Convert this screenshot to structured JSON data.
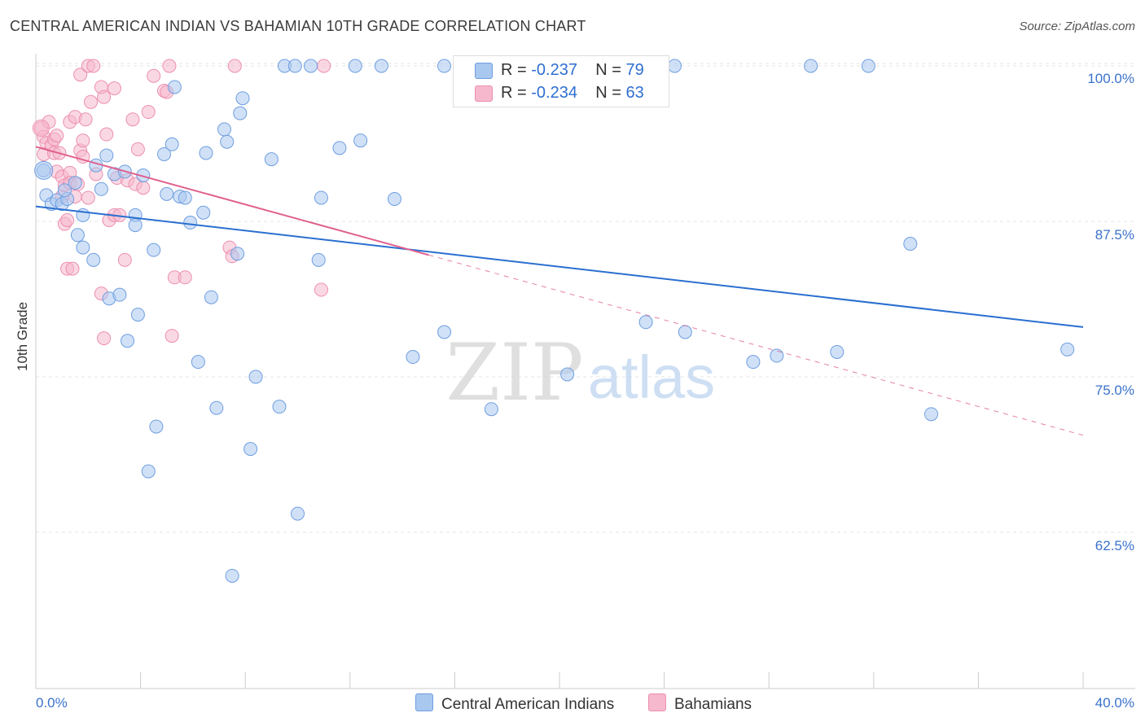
{
  "title": "CENTRAL AMERICAN INDIAN VS BAHAMIAN 10TH GRADE CORRELATION CHART",
  "source": "Source: ZipAtlas.com",
  "watermark": {
    "zip": "ZIP",
    "atlas": "atlas"
  },
  "legend": {
    "rows": [
      {
        "r_label": "R = ",
        "r_value": "-0.237",
        "n_label": "N = ",
        "n_value": "79"
      },
      {
        "r_label": "R = ",
        "r_value": "-0.234",
        "n_label": "N = ",
        "n_value": "63"
      }
    ]
  },
  "colors": {
    "blue_fill": "#a9c8f0",
    "blue_stroke": "#6f9ee0",
    "blue_line": "#2a6fd0",
    "pink_fill": "#f6b8cc",
    "pink_stroke": "#ec8fb0",
    "pink_line": "#e0608e",
    "tick_label": "#3a72cc",
    "grid": "#e4e4e4"
  },
  "chart_data": {
    "type": "scatter",
    "title": "CENTRAL AMERICAN INDIAN VS BAHAMIAN 10TH GRADE CORRELATION CHART",
    "xlabel": "",
    "ylabel": "10th Grade",
    "xlim": [
      0,
      40
    ],
    "ylim": [
      50,
      101
    ],
    "x_tick_labels": [
      "0.0%",
      "40.0%"
    ],
    "y_ticks": [
      62.5,
      75.0,
      87.5,
      100.0
    ],
    "y_tick_labels": [
      "62.5%",
      "75.0%",
      "87.5%",
      "100.0%"
    ],
    "grid": true,
    "legend_position": "bottom",
    "series": [
      {
        "name": "Central American Indians",
        "r": -0.237,
        "n": 79,
        "trend": {
          "x": [
            0,
            40
          ],
          "y": [
            88.7,
            79.0
          ],
          "style": "solid"
        },
        "points": [
          [
            0.3,
            91.6
          ],
          [
            0.4,
            89.6
          ],
          [
            0.6,
            88.9
          ],
          [
            0.8,
            89.2
          ],
          [
            1.0,
            88.9
          ],
          [
            1.2,
            89.3
          ],
          [
            1.1,
            90.0
          ],
          [
            1.5,
            90.6
          ],
          [
            1.6,
            86.4
          ],
          [
            1.8,
            85.4
          ],
          [
            1.8,
            88.0
          ],
          [
            2.2,
            84.4
          ],
          [
            2.3,
            92.0
          ],
          [
            2.5,
            90.1
          ],
          [
            2.7,
            92.8
          ],
          [
            2.8,
            81.3
          ],
          [
            3.0,
            91.3
          ],
          [
            3.2,
            81.6
          ],
          [
            3.4,
            91.5
          ],
          [
            3.5,
            77.9
          ],
          [
            3.8,
            88.0
          ],
          [
            3.8,
            87.2
          ],
          [
            3.9,
            80.0
          ],
          [
            4.1,
            91.2
          ],
          [
            4.3,
            67.4
          ],
          [
            4.5,
            85.2
          ],
          [
            4.6,
            71.0
          ],
          [
            4.9,
            92.9
          ],
          [
            5.0,
            89.7
          ],
          [
            5.2,
            93.7
          ],
          [
            5.3,
            98.3
          ],
          [
            5.5,
            89.5
          ],
          [
            5.7,
            89.4
          ],
          [
            5.9,
            87.4
          ],
          [
            6.2,
            76.2
          ],
          [
            6.4,
            88.2
          ],
          [
            6.5,
            93.0
          ],
          [
            6.7,
            81.4
          ],
          [
            6.9,
            72.5
          ],
          [
            7.2,
            94.9
          ],
          [
            7.3,
            93.9
          ],
          [
            7.5,
            59.0
          ],
          [
            7.7,
            84.9
          ],
          [
            7.8,
            96.2
          ],
          [
            7.9,
            97.4
          ],
          [
            8.2,
            69.2
          ],
          [
            8.4,
            75.0
          ],
          [
            9.0,
            92.5
          ],
          [
            9.3,
            72.6
          ],
          [
            9.5,
            100.0
          ],
          [
            9.9,
            100.0
          ],
          [
            10.0,
            64.0
          ],
          [
            10.5,
            100.0
          ],
          [
            10.8,
            84.4
          ],
          [
            10.9,
            89.4
          ],
          [
            11.6,
            93.4
          ],
          [
            12.2,
            100.0
          ],
          [
            12.4,
            94.0
          ],
          [
            13.2,
            100.0
          ],
          [
            13.7,
            89.3
          ],
          [
            14.4,
            76.6
          ],
          [
            15.6,
            78.6
          ],
          [
            15.6,
            100.0
          ],
          [
            16.6,
            100.0
          ],
          [
            17.4,
            72.4
          ],
          [
            17.5,
            100.0
          ],
          [
            19.5,
            100.0
          ],
          [
            20.3,
            75.2
          ],
          [
            23.3,
            79.4
          ],
          [
            24.4,
            100.0
          ],
          [
            24.8,
            78.6
          ],
          [
            27.4,
            76.2
          ],
          [
            28.3,
            76.7
          ],
          [
            29.6,
            100.0
          ],
          [
            30.6,
            77.0
          ],
          [
            31.8,
            100.0
          ],
          [
            33.4,
            85.7
          ],
          [
            34.2,
            72.0
          ],
          [
            39.4,
            77.2
          ]
        ]
      },
      {
        "name": "Bahamians",
        "r": -0.234,
        "n": 63,
        "trend": {
          "x": [
            0,
            15
          ],
          "y": [
            93.5,
            84.8
          ],
          "dashed_to": [
            40,
            70.3
          ],
          "style": "solid-then-dashed"
        },
        "points": [
          [
            0.2,
            95.0
          ],
          [
            0.3,
            94.3
          ],
          [
            0.4,
            93.8
          ],
          [
            0.3,
            92.9
          ],
          [
            0.5,
            95.5
          ],
          [
            0.6,
            93.6
          ],
          [
            0.7,
            94.1
          ],
          [
            0.7,
            93.0
          ],
          [
            0.8,
            94.4
          ],
          [
            0.9,
            93.0
          ],
          [
            0.8,
            91.5
          ],
          [
            1.0,
            91.1
          ],
          [
            1.0,
            89.5
          ],
          [
            1.1,
            90.4
          ],
          [
            1.1,
            87.3
          ],
          [
            1.2,
            87.6
          ],
          [
            1.2,
            83.7
          ],
          [
            1.3,
            95.5
          ],
          [
            1.3,
            91.4
          ],
          [
            1.3,
            90.6
          ],
          [
            1.4,
            83.7
          ],
          [
            1.5,
            95.9
          ],
          [
            1.5,
            89.5
          ],
          [
            1.6,
            90.5
          ],
          [
            1.7,
            93.2
          ],
          [
            1.7,
            99.3
          ],
          [
            1.8,
            94.0
          ],
          [
            1.9,
            95.7
          ],
          [
            1.8,
            92.7
          ],
          [
            2.0,
            100.0
          ],
          [
            2.0,
            89.4
          ],
          [
            2.1,
            97.1
          ],
          [
            2.2,
            100.0
          ],
          [
            2.3,
            91.3
          ],
          [
            2.5,
            81.7
          ],
          [
            2.5,
            98.3
          ],
          [
            2.6,
            97.5
          ],
          [
            2.6,
            78.1
          ],
          [
            2.7,
            94.5
          ],
          [
            2.8,
            87.6
          ],
          [
            3.0,
            98.2
          ],
          [
            3.0,
            88.0
          ],
          [
            3.1,
            91.0
          ],
          [
            3.2,
            88.0
          ],
          [
            3.4,
            84.4
          ],
          [
            3.5,
            90.8
          ],
          [
            3.7,
            95.7
          ],
          [
            3.8,
            90.5
          ],
          [
            3.9,
            93.3
          ],
          [
            4.1,
            90.2
          ],
          [
            4.3,
            96.3
          ],
          [
            4.5,
            99.2
          ],
          [
            4.9,
            98.0
          ],
          [
            5.0,
            97.9
          ],
          [
            5.1,
            100.0
          ],
          [
            5.2,
            78.3
          ],
          [
            5.3,
            83.0
          ],
          [
            5.7,
            83.0
          ],
          [
            7.4,
            85.4
          ],
          [
            7.5,
            84.7
          ],
          [
            7.6,
            100.0
          ],
          [
            10.9,
            82.0
          ],
          [
            11.0,
            100.0
          ]
        ]
      }
    ]
  }
}
